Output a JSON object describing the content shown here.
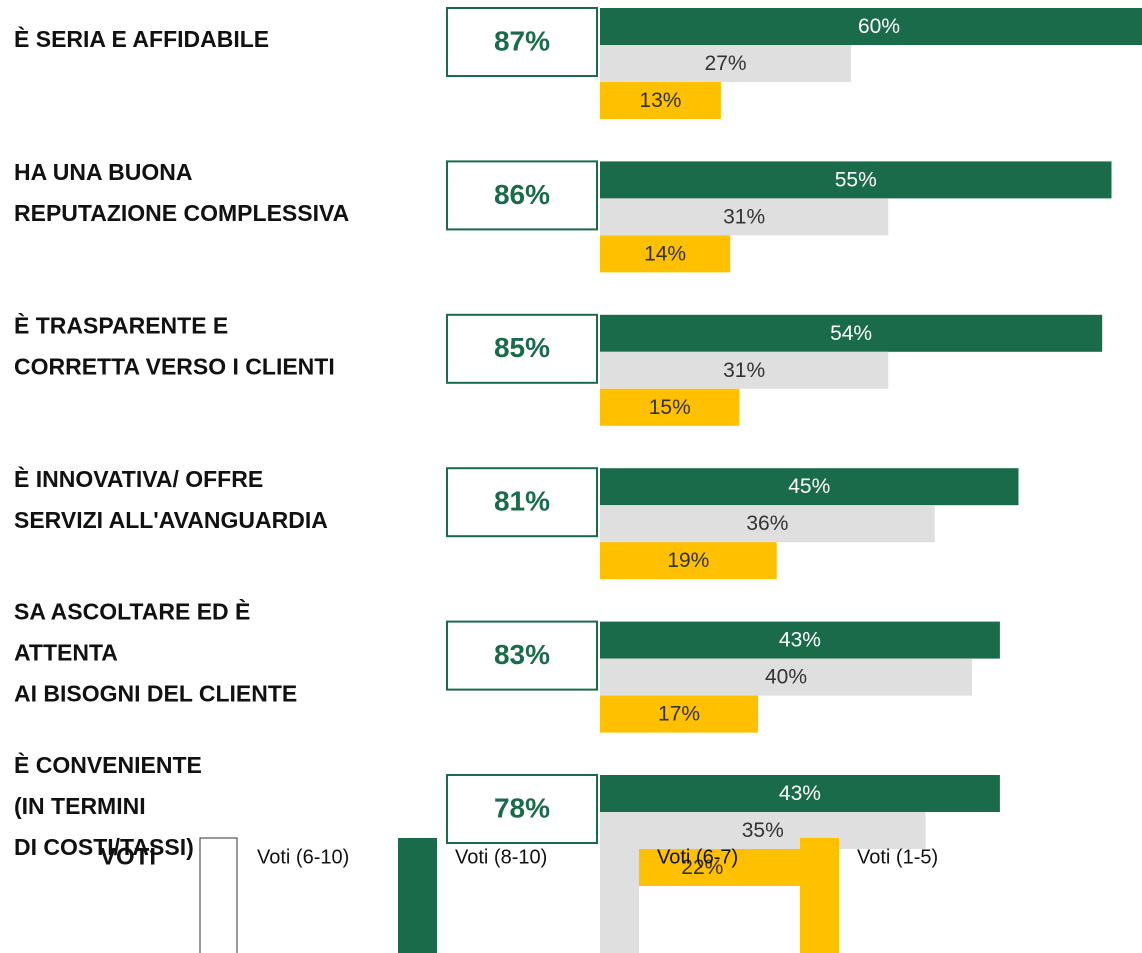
{
  "chart_data": {
    "type": "bar",
    "orientation": "horizontal",
    "legend_title": "VOTI",
    "categories": [
      [
        "È SERIA E AFFIDABILE"
      ],
      [
        "HA UNA BUONA",
        "REPUTAZIONE COMPLESSIVA"
      ],
      [
        "È TRASPARENTE E",
        "CORRETTA VERSO I CLIENTI"
      ],
      [
        "È INNOVATIVA/ OFFRE",
        "SERVIZI ALL'AVANGUARDIA"
      ],
      [
        "SA ASCOLTARE ED È",
        "ATTENTA",
        "AI BISOGNI DEL CLIENTE"
      ],
      [
        "È CONVENIENTE",
        "(IN TERMINI",
        "DI COSTI/TASSI)"
      ]
    ],
    "series": [
      {
        "name": "Voti (6-10)",
        "color": "#1a6b4a",
        "values": [
          87,
          86,
          85,
          81,
          83,
          78
        ],
        "value_labels": [
          "87%",
          "86%",
          "85%",
          "81%",
          "83%",
          "78%"
        ]
      },
      {
        "name": "Voti (8-10)",
        "color": "#1a6b4a",
        "values": [
          60,
          55,
          54,
          45,
          43,
          43
        ],
        "value_labels": [
          "60%",
          "55%",
          "54%",
          "45%",
          "43%",
          "43%"
        ]
      },
      {
        "name": "Voti (6-7)",
        "color": "#e0dfdf",
        "values": [
          27,
          31,
          31,
          36,
          40,
          35
        ],
        "value_labels": [
          "27%",
          "31%",
          "31%",
          "36%",
          "40%",
          "35%"
        ]
      },
      {
        "name": "Voti (1-5)",
        "color": "#ffc000",
        "values": [
          13,
          14,
          15,
          19,
          17,
          22
        ],
        "value_labels": [
          "13%",
          "14%",
          "15%",
          "19%",
          "17%",
          "22%"
        ]
      }
    ]
  }
}
